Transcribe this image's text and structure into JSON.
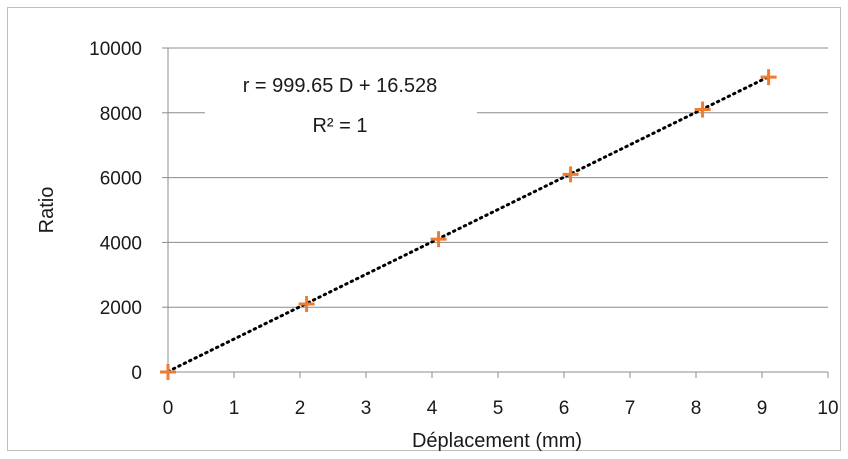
{
  "chart_data": {
    "type": "scatter",
    "title": "",
    "xlabel": "Déplacement (mm)",
    "ylabel": "Ratio",
    "xlim": [
      0,
      10
    ],
    "ylim": [
      0,
      10000
    ],
    "xticks": [
      0,
      1,
      2,
      3,
      4,
      5,
      6,
      7,
      8,
      9,
      10
    ],
    "yticks": [
      0,
      2000,
      4000,
      6000,
      8000,
      10000
    ],
    "grid": "horizontal",
    "series": [
      {
        "marker": "plus",
        "color": "#ed7d31",
        "x": [
          0,
          2.1,
          4.1,
          6.1,
          8.1,
          9.1
        ],
        "y": [
          0,
          2100,
          4100,
          6100,
          8100,
          9100
        ]
      }
    ],
    "trendline": {
      "type": "linear",
      "style": "dotted",
      "color": "#000000",
      "slope": 999.65,
      "intercept": 16.528,
      "equation": "r = 999.65 D + 16.528",
      "r_squared": "R² = 1"
    }
  }
}
